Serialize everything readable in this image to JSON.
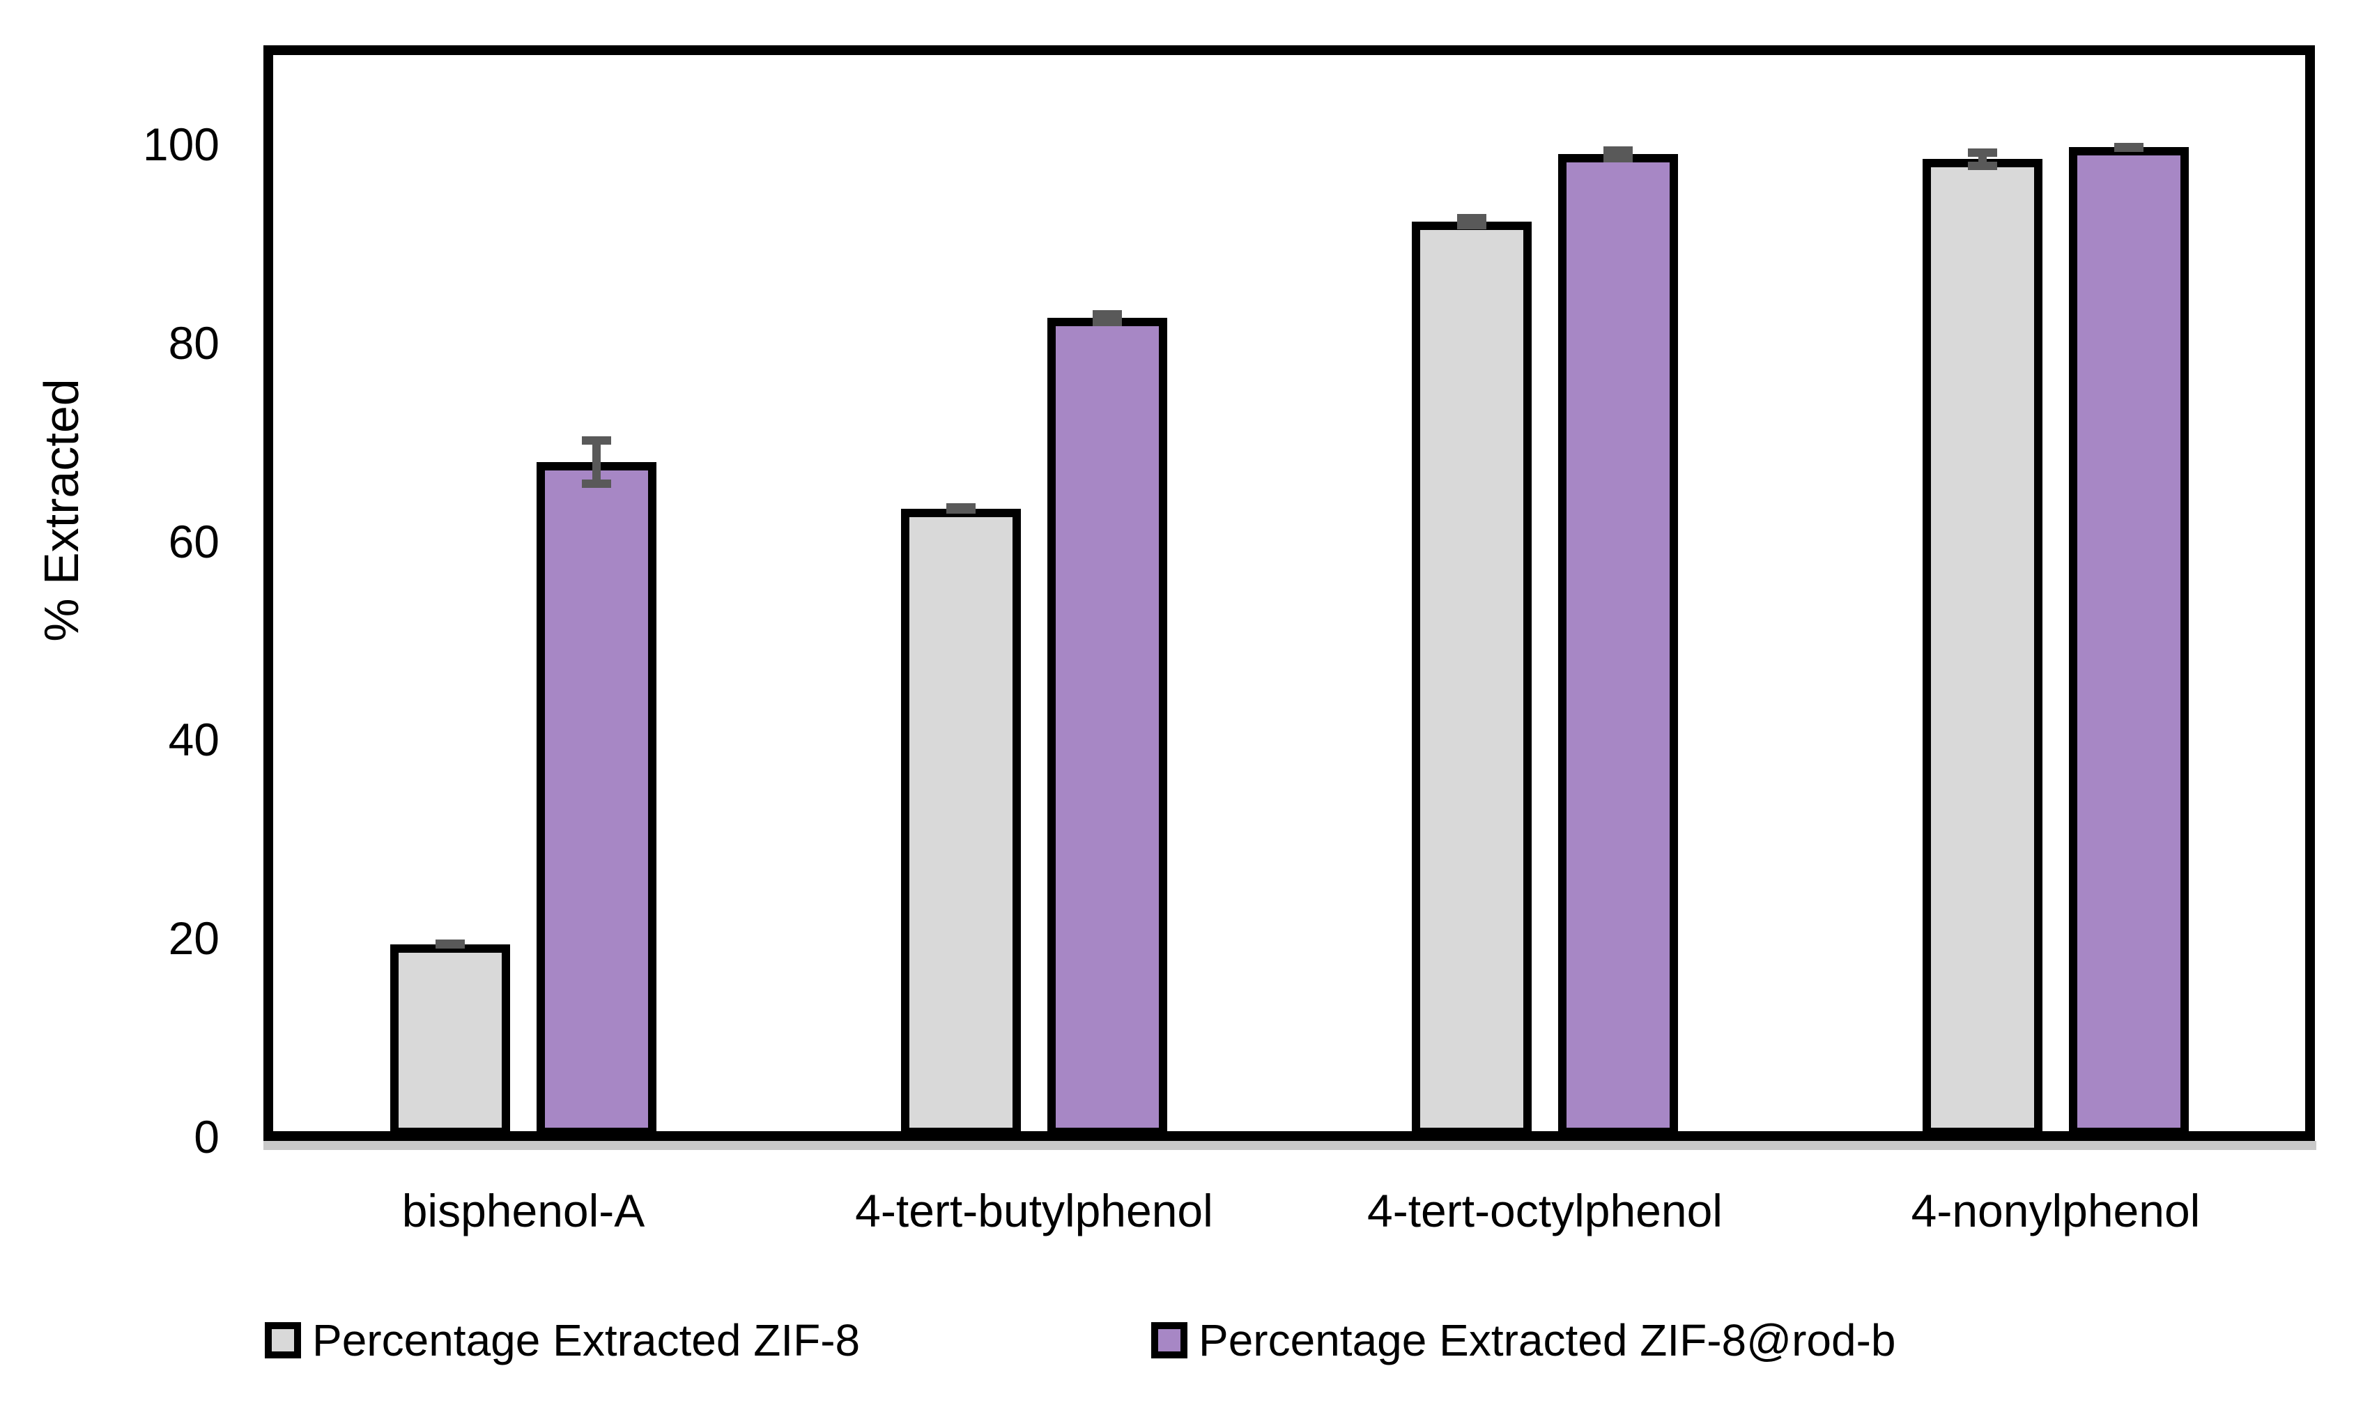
{
  "chart_data": {
    "type": "bar",
    "title": "",
    "xlabel": "",
    "ylabel": "% Extracted",
    "categories": [
      "bisphenol-A",
      "4-tert-butylphenol",
      "4-tert-octylphenol",
      "4-nonylphenol"
    ],
    "series": [
      {
        "name": "Percentage Extracted ZIF-8",
        "color": "#d9d9d9",
        "values": [
          19.4,
          63.3,
          92.2,
          98.5
        ],
        "errors": [
          0.4,
          0.5,
          0.8,
          1.1
        ]
      },
      {
        "name": "Percentage Extracted ZIF-8@rod-b",
        "color": "#a787c5",
        "values": [
          68.0,
          82.5,
          99.0,
          99.7
        ],
        "errors": [
          2.6,
          0.8,
          0.8,
          0.4
        ]
      }
    ],
    "y_axis": {
      "min": 0,
      "max": 110,
      "ticks": [
        0,
        20,
        40,
        60,
        80,
        100
      ]
    },
    "legend_position": "bottom",
    "grid": false,
    "error_bar_color": "#595959",
    "axis_line_color": "#c9c9c9",
    "bar_border_color": "#000000",
    "plot_border_color": "#000000"
  }
}
